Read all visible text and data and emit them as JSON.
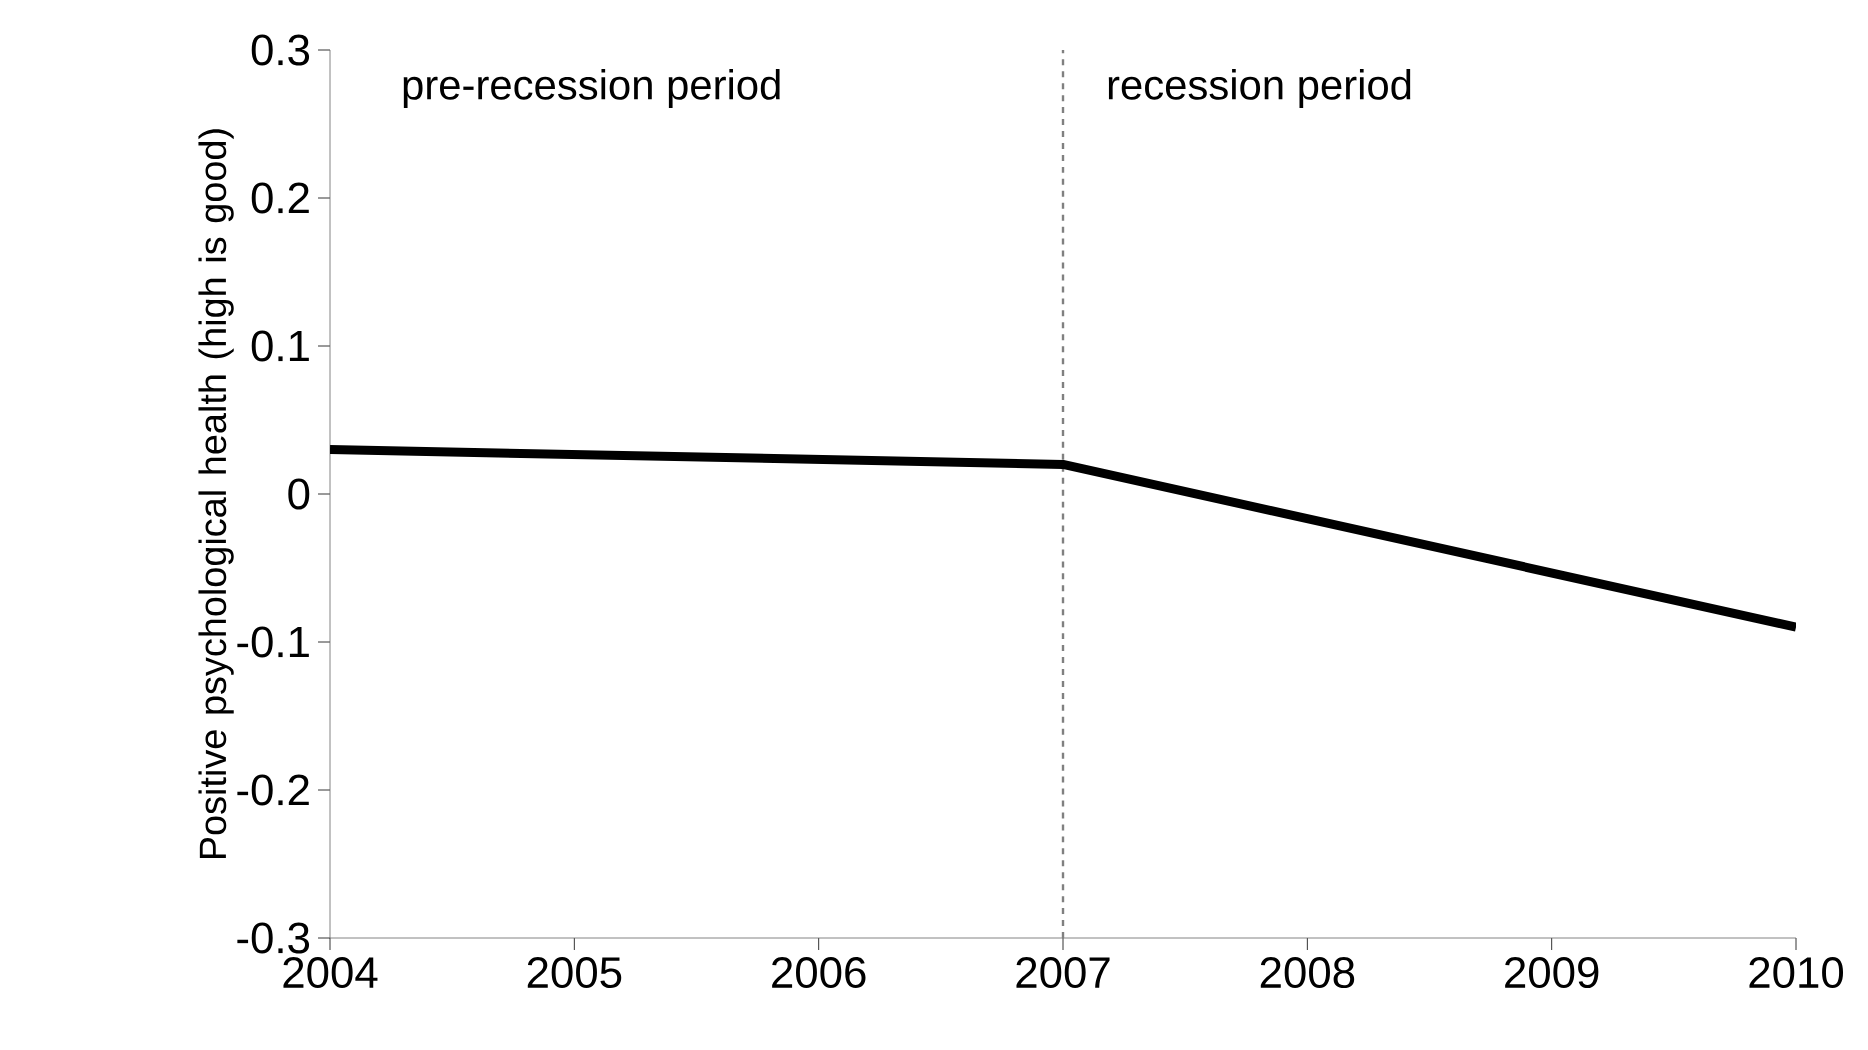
{
  "chart_data": {
    "type": "line",
    "ylabel": "Positive psychological health (high is good)",
    "x": [
      2004,
      2007,
      2010
    ],
    "series": [
      {
        "color": "#000000",
        "values": [
          0.03,
          0.02,
          -0.09
        ]
      }
    ],
    "xlim": [
      2004,
      2010
    ],
    "xticks": [
      2004,
      2005,
      2006,
      2007,
      2008,
      2009,
      2010
    ],
    "ylim": [
      -0.3,
      0.3
    ],
    "yticks": [
      -0.3,
      -0.2,
      -0.1,
      0,
      0.1,
      0.2,
      0.3
    ],
    "ref_lines": [
      {
        "axis": "x",
        "value": 2007,
        "color": "#808080",
        "line_style": "dashed"
      }
    ],
    "annotations": [
      "pre-recession period",
      "recession period"
    ],
    "marker": "none",
    "line_style": "solid"
  }
}
